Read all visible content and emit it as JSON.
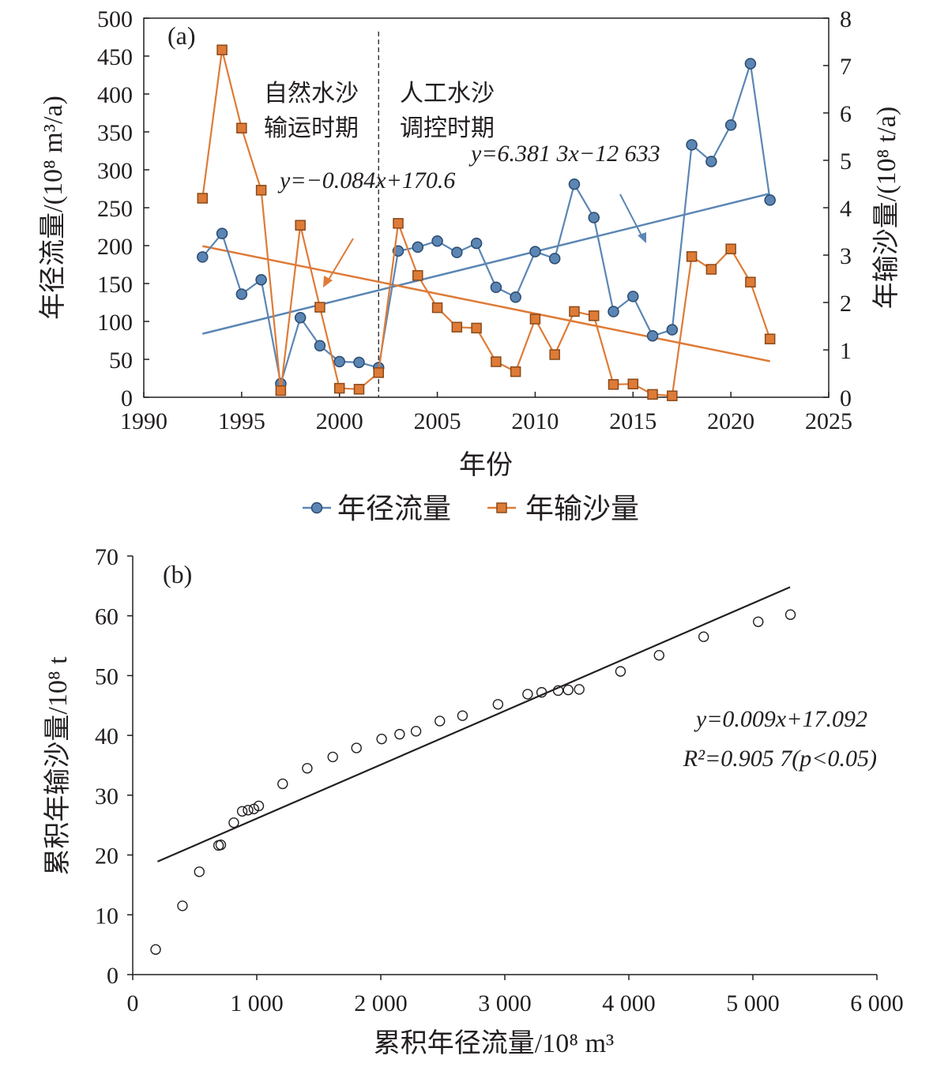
{
  "chart_data": [
    {
      "type": "line",
      "panel_label": "(a)",
      "xlabel": "年份",
      "ylabel_left": "年径流量/(10⁸ m³/a)",
      "ylabel_right": "年输沙量/(10⁸ t/a)",
      "xlim": [
        1990,
        2025
      ],
      "ylim_left": [
        0,
        500
      ],
      "ylim_right": [
        0,
        8
      ],
      "x_ticks": [
        "1990",
        "1995",
        "2000",
        "2005",
        "2010",
        "2015",
        "2020",
        "2025"
      ],
      "y_ticks_left": [
        "0",
        "50",
        "100",
        "150",
        "200",
        "250",
        "300",
        "350",
        "400",
        "450",
        "500"
      ],
      "y_ticks_right": [
        "0",
        "1",
        "2",
        "3",
        "4",
        "5",
        "6",
        "7",
        "8"
      ],
      "x": [
        1993,
        1994,
        1995,
        1996,
        1997,
        1998,
        1999,
        2000,
        2001,
        2002,
        2003,
        2004,
        2005,
        2006,
        2007,
        2008,
        2009,
        2010,
        2011,
        2012,
        2013,
        2014,
        2015,
        2016,
        2017,
        2018,
        2019,
        2020,
        2021,
        2022
      ],
      "series": [
        {
          "name": "年径流量",
          "axis": "left",
          "marker": "circle",
          "color": "#5b86b4",
          "values": [
            185,
            216,
            136,
            155,
            18,
            105,
            68,
            47,
            46,
            39,
            193,
            198,
            206,
            191,
            203,
            145,
            132,
            192,
            183,
            281,
            237,
            113,
            133,
            81,
            89,
            333,
            311,
            359,
            440,
            260
          ]
        },
        {
          "name": "年输沙量",
          "axis": "right",
          "marker": "square",
          "color": "#de7b37",
          "values": [
            4.2,
            7.33,
            5.68,
            4.37,
            0.14,
            3.63,
            1.9,
            0.19,
            0.17,
            0.52,
            3.67,
            2.57,
            1.89,
            1.48,
            1.46,
            0.75,
            0.54,
            1.65,
            0.9,
            1.81,
            1.72,
            0.27,
            0.28,
            0.06,
            0.03,
            2.97,
            2.7,
            3.13,
            2.43,
            1.23
          ]
        }
      ],
      "trendlines": [
        {
          "series": "年径流量",
          "x0": 1993,
          "x1": 2022,
          "y0": 83.7,
          "y1": 268.7,
          "color": "#5b86b4"
        },
        {
          "series": "年输沙量",
          "x0": 1993,
          "x1": 2022,
          "y0": 3.19,
          "y1": 0.76,
          "color": "#de7b37"
        }
      ],
      "divider_x": 2002,
      "annotations": {
        "period1_line1": "自然水沙",
        "period1_line2": "输运时期",
        "period2_line1": "人工水沙",
        "period2_line2": "调控时期",
        "eq_runoff": "y=6.381 3x−12 633",
        "eq_sediment": "y=−0.084x+170.6"
      },
      "legend": {
        "placement": "bottom",
        "items": [
          "年径流量",
          "年输沙量"
        ]
      }
    },
    {
      "type": "scatter",
      "panel_label": "(b)",
      "xlabel": "累积年径流量/10⁸ m³",
      "ylabel": "累积年输沙量/10⁸ t",
      "xlim": [
        0,
        6000
      ],
      "ylim": [
        0,
        70
      ],
      "x_ticks": [
        "0",
        "1 000",
        "2 000",
        "3 000",
        "4 000",
        "5 000",
        "6 000"
      ],
      "y_ticks": [
        "0",
        "10",
        "20",
        "30",
        "40",
        "50",
        "60",
        "70"
      ],
      "marker": "open-circle",
      "points": [
        [
          185,
          4.2
        ],
        [
          401,
          11.5
        ],
        [
          537,
          17.2
        ],
        [
          692,
          21.6
        ],
        [
          710,
          21.7
        ],
        [
          815,
          25.4
        ],
        [
          883,
          27.3
        ],
        [
          930,
          27.5
        ],
        [
          977,
          27.7
        ],
        [
          1016,
          28.2
        ],
        [
          1209,
          31.9
        ],
        [
          1407,
          34.5
        ],
        [
          1613,
          36.4
        ],
        [
          1804,
          37.9
        ],
        [
          2007,
          39.4
        ],
        [
          2152,
          40.2
        ],
        [
          2284,
          40.7
        ],
        [
          2476,
          42.4
        ],
        [
          2659,
          43.3
        ],
        [
          2945,
          45.2
        ],
        [
          3184,
          46.9
        ],
        [
          3297,
          47.2
        ],
        [
          3430,
          47.5
        ],
        [
          3511,
          47.6
        ],
        [
          3600,
          47.7
        ],
        [
          3933,
          50.7
        ],
        [
          4244,
          53.4
        ],
        [
          4603,
          56.5
        ],
        [
          5043,
          59.0
        ],
        [
          5303,
          60.2
        ]
      ],
      "fit_line": {
        "x0": 200,
        "x1": 5300,
        "y0": 18.9,
        "y1": 64.8,
        "color": "#231f20"
      },
      "annotations": {
        "equation": "y=0.009x+17.092",
        "r2": "R²=0.905 7(p<0.05)"
      }
    }
  ]
}
